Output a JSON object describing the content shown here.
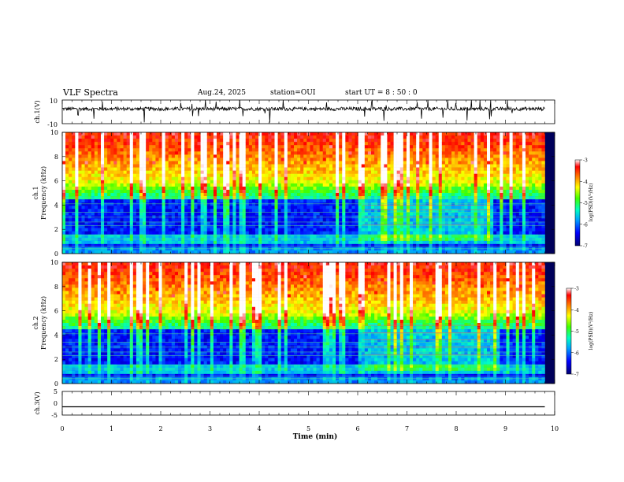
{
  "header": {
    "title": "VLF Spectra",
    "date": "Aug.24, 2025",
    "station": "station=OUI",
    "start": "start  UT =  8 : 50 : 0"
  },
  "chart_data": [
    {
      "type": "line",
      "panel": "ch1-waveform",
      "ylabel": "ch.1(V)",
      "ylim": [
        -10,
        10
      ],
      "yticks": [
        "10",
        "-10"
      ],
      "xlim": [
        0,
        10
      ],
      "baseline": 2.5,
      "data_end_min": 9.8
    },
    {
      "type": "heatmap",
      "panel": "ch1-spectrogram",
      "ylabel": "ch.1\nFrequency (kHz)",
      "ylim": [
        0,
        10
      ],
      "yticks": [
        "0",
        "2",
        "4",
        "6",
        "8",
        "10"
      ],
      "xlim": [
        0,
        10
      ],
      "data_end_min": 9.8,
      "colorbar": {
        "label": "log(PSD)(V²/Hz)",
        "range": [
          -7,
          -3
        ],
        "ticks": [
          "-3",
          "-4",
          "-5",
          "-6",
          "-7"
        ]
      }
    },
    {
      "type": "heatmap",
      "panel": "ch2-spectrogram",
      "ylabel": "ch.2\nFrequency (kHz)",
      "ylim": [
        0,
        10
      ],
      "yticks": [
        "0",
        "2",
        "4",
        "6",
        "8",
        "10"
      ],
      "xlim": [
        0,
        10
      ],
      "data_end_min": 9.8,
      "colorbar": {
        "label": "log(PSD)(V²/Hz)",
        "range": [
          -7,
          -3
        ],
        "ticks": [
          "-3",
          "-4",
          "-5",
          "-6",
          "-7"
        ]
      }
    },
    {
      "type": "line",
      "panel": "ch3-waveform",
      "ylabel": "ch.3(V)",
      "ylim": [
        -5,
        5
      ],
      "yticks": [
        "5",
        "0",
        "-5"
      ],
      "xlim": [
        0,
        10
      ],
      "baseline": -1.5,
      "data_end_min": 9.8
    }
  ],
  "xaxis": {
    "label": "Time (min)",
    "ticks": [
      "0",
      "1",
      "2",
      "3",
      "4",
      "5",
      "6",
      "7",
      "8",
      "9",
      "10"
    ]
  },
  "colors": {
    "colormap": [
      "#000070",
      "#0000ff",
      "#00a0ff",
      "#00ffc0",
      "#40ff00",
      "#ffff00",
      "#ff8000",
      "#ff0000",
      "#ffffff"
    ]
  }
}
